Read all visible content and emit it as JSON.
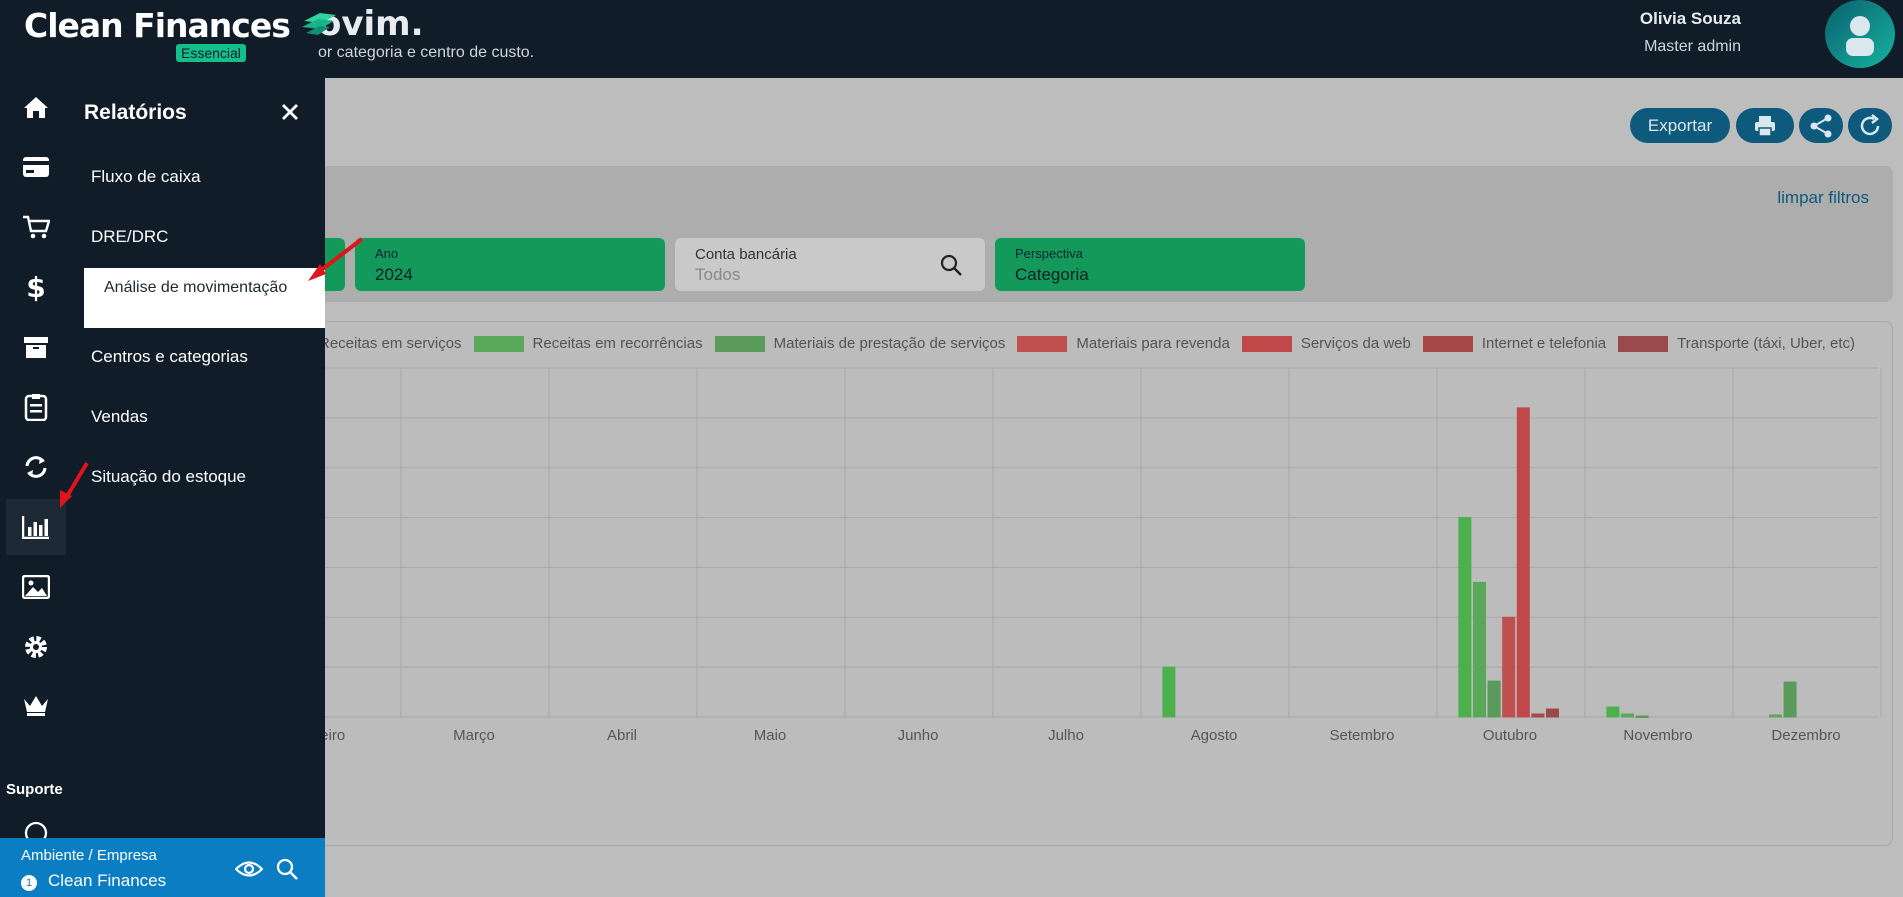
{
  "app": {
    "brand": "Clean Finances",
    "plan": "Essencial"
  },
  "header": {
    "title": "ovim.",
    "subtitle": "or categoria e centro de custo.",
    "user_name": "Olivia Souza",
    "user_role": "Master admin"
  },
  "actions": {
    "export_label": "Exportar"
  },
  "filters": {
    "clear_label": "limpar filtros",
    "year": {
      "label": "Ano",
      "value": "2024"
    },
    "bank_account": {
      "label": "Conta bancária",
      "placeholder": "Todos"
    },
    "perspective": {
      "label": "Perspectiva",
      "value": "Categoria"
    }
  },
  "sidebar": {
    "icons": [
      "home-icon",
      "credit-card-icon",
      "cart-icon",
      "dollar-icon",
      "archive-icon",
      "clipboard-icon",
      "sync-icon",
      "bar-chart-icon",
      "image-icon",
      "gear-icon",
      "crown-icon"
    ],
    "active_icon": "bar-chart-icon",
    "support_label": "Suporte"
  },
  "drawer": {
    "title": "Relatórios",
    "items": [
      {
        "label": "Fluxo de caixa"
      },
      {
        "label": "DRE/DRC"
      },
      {
        "label": "Análise de movimentação",
        "active": true
      },
      {
        "label": "Centros e categorias"
      },
      {
        "label": "Vendas"
      },
      {
        "label": "Situação do estoque"
      }
    ]
  },
  "environment": {
    "label": "Ambiente / Empresa",
    "index": "1",
    "name": "Clean Finances"
  },
  "colors": {
    "accent": "#13c08a",
    "primary": "#0d5a7c",
    "dark": "#101c28",
    "env": "#0b7ec3"
  },
  "chart_data": {
    "type": "bar",
    "categories": [
      "ereiro",
      "Março",
      "Abril",
      "Maio",
      "Junho",
      "Julho",
      "Agosto",
      "Setembro",
      "Outubro",
      "Novembro",
      "Dezembro"
    ],
    "ylim": [
      0,
      7
    ],
    "series": [
      {
        "name": "Receitas em serviços",
        "color": "#4cb04c",
        "values": [
          0,
          0,
          0,
          0,
          0,
          0,
          1,
          0,
          4,
          0.2,
          0
        ]
      },
      {
        "name": "Receitas em recorrências",
        "color": "#5aa85a",
        "values": [
          0,
          0,
          0,
          0,
          0,
          0,
          0,
          0,
          2.7,
          0.06,
          0.04
        ]
      },
      {
        "name": "Materiais de prestação de serviços",
        "color": "#5a9a5a",
        "values": [
          0,
          0,
          0,
          0,
          0,
          0,
          0,
          0,
          0.72,
          0.02,
          0.7
        ]
      },
      {
        "name": "Materiais para revenda",
        "color": "#c05050",
        "values": [
          0,
          0,
          0,
          0,
          0,
          0,
          0,
          0,
          2,
          0,
          0
        ]
      },
      {
        "name": "Serviços da web",
        "color": "#c04848",
        "values": [
          0,
          0,
          0,
          0,
          0,
          0,
          0,
          0,
          6.2,
          0,
          0
        ]
      },
      {
        "name": "Internet e telefonia",
        "color": "#a84848",
        "values": [
          0,
          0,
          0,
          0,
          0,
          0,
          0,
          0,
          0.06,
          0,
          0
        ]
      },
      {
        "name": "Transporte (táxi, Uber, etc)",
        "color": "#9a4a4a",
        "values": [
          0,
          0,
          0,
          0,
          0,
          0,
          0,
          0,
          0.16,
          0,
          0
        ]
      }
    ]
  }
}
